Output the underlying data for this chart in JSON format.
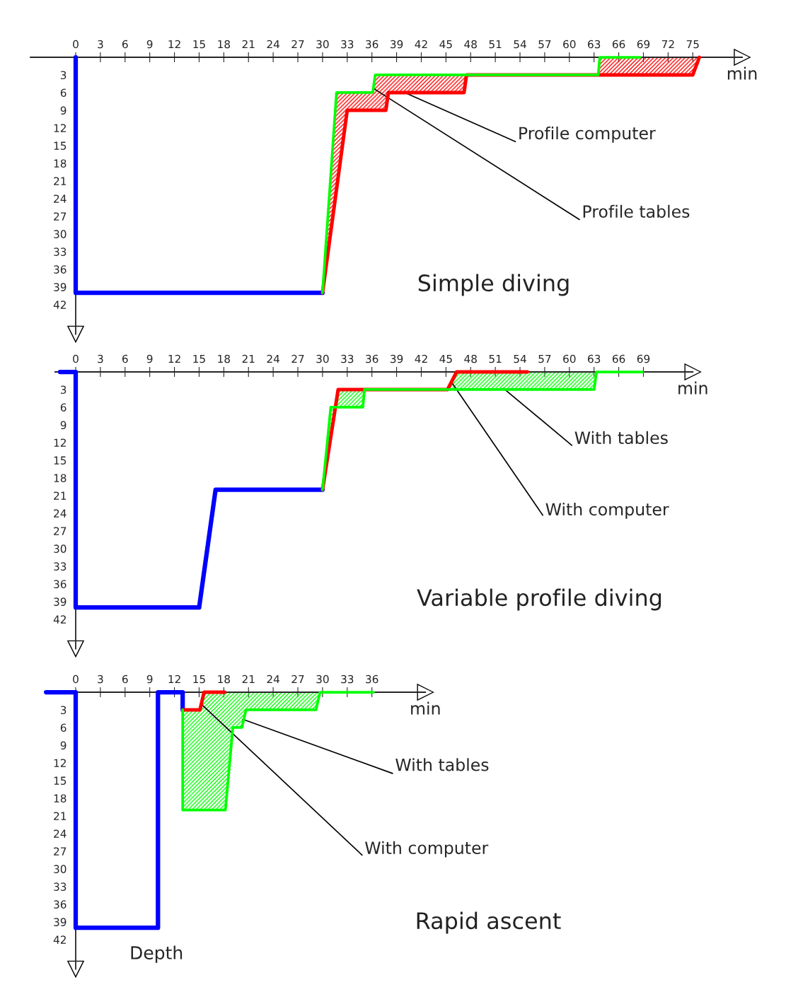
{
  "chart_data": [
    {
      "type": "line",
      "title": "Simple diving",
      "xlabel": "min",
      "xlim": [
        -5.5,
        81
      ],
      "xticks": [
        0,
        3,
        6,
        9,
        12,
        15,
        18,
        21,
        24,
        27,
        30,
        33,
        36,
        39,
        42,
        45,
        48,
        51,
        54,
        57,
        60,
        63,
        66,
        69,
        72,
        75
      ],
      "ylim": [
        47,
        0
      ],
      "yticks": [
        3,
        6,
        9,
        12,
        15,
        18,
        21,
        24,
        27,
        30,
        33,
        36,
        39,
        42
      ],
      "grid": false,
      "series": [
        {
          "color": "#0000ff",
          "x": [
            0,
            0,
            30
          ],
          "values": [
            0,
            40,
            40
          ]
        },
        {
          "color": "#ff0000",
          "x": [
            30,
            33,
            37.7,
            38,
            47.2,
            47.5,
            75,
            75.8
          ],
          "values": [
            40,
            9,
            9,
            6,
            6,
            3,
            3,
            0
          ]
        },
        {
          "color": "#00ff00",
          "x": [
            30,
            31.7,
            36.1,
            36.4,
            63.5,
            63.7,
            68.6
          ],
          "values": [
            40,
            6,
            6,
            3,
            3,
            0,
            0
          ]
        }
      ],
      "annotations": [
        {
          "text": "Profile computer",
          "x": 40,
          "y": 6
        },
        {
          "text": "Profile tables",
          "x": 36.2,
          "y": 5.3
        }
      ]
    },
    {
      "type": "line",
      "title": "Variable profile diving",
      "xlabel": "min",
      "xlim": [
        -2.5,
        75
      ],
      "xticks": [
        0,
        3,
        6,
        9,
        12,
        15,
        18,
        21,
        24,
        27,
        30,
        33,
        36,
        39,
        42,
        45,
        48,
        51,
        54,
        57,
        60,
        63,
        66,
        69
      ],
      "ylim": [
        47,
        0
      ],
      "yticks": [
        3,
        6,
        9,
        12,
        15,
        18,
        21,
        24,
        27,
        30,
        33,
        36,
        39,
        42
      ],
      "grid": false,
      "series": [
        {
          "color": "#0000ff",
          "x": [
            -1.9,
            0,
            0,
            15,
            17,
            30
          ],
          "values": [
            0,
            0,
            40,
            40,
            20,
            20
          ]
        },
        {
          "color": "#ff0000",
          "x": [
            30,
            31.9,
            45.2,
            46.3,
            54.9
          ],
          "values": [
            20,
            3,
            3,
            0,
            0
          ]
        },
        {
          "color": "#00ff00",
          "x": [
            30,
            31,
            34.9,
            35.1,
            63,
            63.3,
            68.9
          ],
          "values": [
            20,
            6,
            6,
            3,
            3,
            0,
            0
          ]
        }
      ],
      "annotations": [
        {
          "text": "With tables",
          "x": 52,
          "y": 2.8
        },
        {
          "text": "With computer",
          "x": 45.6,
          "y": 1.6
        }
      ]
    },
    {
      "type": "line",
      "title": "Rapid ascent",
      "xlabel": "min",
      "ylabel": "Depth",
      "xlim": [
        -3.6,
        42.5
      ],
      "xticks": [
        0,
        3,
        6,
        9,
        12,
        15,
        18,
        21,
        24,
        27,
        30,
        33,
        36
      ],
      "ylim": [
        47,
        0
      ],
      "yticks": [
        3,
        6,
        9,
        12,
        15,
        18,
        21,
        24,
        27,
        30,
        33,
        36,
        39,
        42
      ],
      "grid": false,
      "series": [
        {
          "color": "#0000ff",
          "x": [
            -3.6,
            0,
            0,
            10,
            10,
            13,
            13
          ],
          "values": [
            0,
            0,
            40,
            40,
            0,
            0,
            3
          ]
        },
        {
          "color": "#ff0000",
          "x": [
            13,
            15.1,
            15.6,
            18.1
          ],
          "values": [
            3,
            3,
            0,
            0
          ]
        },
        {
          "color": "#00ff00",
          "x": [
            13,
            13,
            18.2,
            19.1,
            20.2,
            20.7,
            29.2,
            29.7,
            36.2
          ],
          "values": [
            3,
            20,
            20,
            6,
            6,
            3,
            3,
            0,
            0
          ]
        }
      ],
      "annotations": [
        {
          "text": "With tables",
          "x": 20.3,
          "y": 4.6
        },
        {
          "text": "With computer",
          "x": 15.4,
          "y": 2.2
        }
      ]
    }
  ]
}
